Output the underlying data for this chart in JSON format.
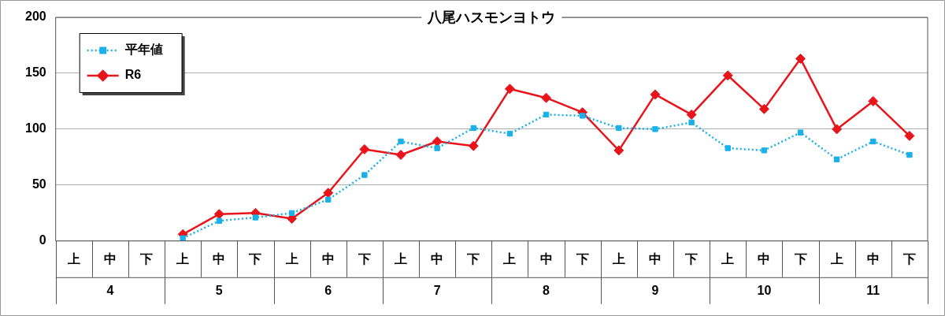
{
  "chart_data": {
    "type": "line",
    "title": "八尾ハスモンヨトウ",
    "categories": [
      "上",
      "中",
      "下",
      "上",
      "中",
      "下",
      "上",
      "中",
      "下",
      "上",
      "中",
      "下",
      "上",
      "中",
      "下",
      "上",
      "中",
      "下",
      "上",
      "中",
      "下",
      "上",
      "中",
      "下"
    ],
    "annotations": [
      "4",
      "5",
      "6",
      "7",
      "8",
      "9",
      "10",
      "11"
    ],
    "series": [
      {
        "name": "平年値",
        "color": "#1ab0e8",
        "line_style": "dotted",
        "marker": "square",
        "values": [
          null,
          null,
          null,
          2.5,
          18,
          21,
          25,
          37,
          59,
          89,
          83,
          101,
          96,
          113,
          112,
          101,
          100,
          106,
          83,
          81,
          97,
          73,
          89,
          77
        ]
      },
      {
        "name": "R6",
        "color": "#e8141c",
        "line_style": "solid",
        "marker": "diamond",
        "values": [
          null,
          null,
          null,
          6,
          24,
          25,
          20,
          43,
          82,
          77,
          89,
          85,
          136,
          128,
          115,
          81,
          131,
          113,
          148,
          118,
          163,
          100,
          125,
          94
        ]
      }
    ],
    "ylim": [
      0,
      200
    ],
    "yticks": [
      0,
      50,
      100,
      150,
      200
    ],
    "grid": "y",
    "legend": "top left"
  }
}
